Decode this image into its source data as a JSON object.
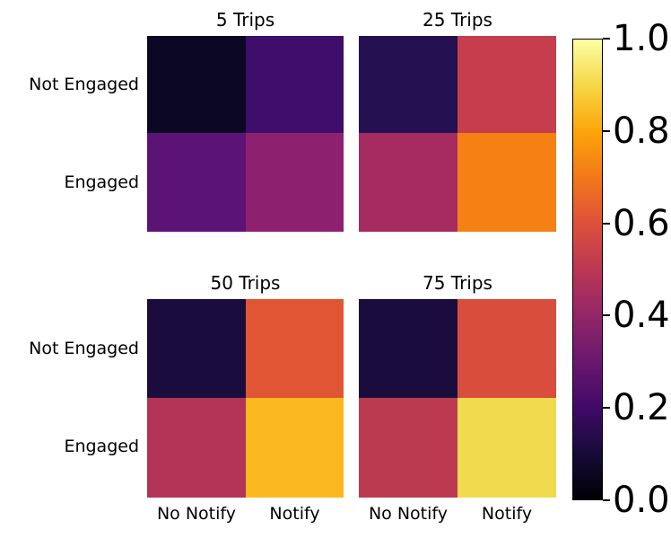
{
  "figure": {
    "background": "#ffffff",
    "colormap": "inferno"
  },
  "chart_data": [
    {
      "type": "heatmap",
      "title": "5 Trips",
      "rows": [
        "Not Engaged",
        "Engaged"
      ],
      "columns": [
        "No Notify",
        "Notify"
      ],
      "values": [
        [
          0.06,
          0.2
        ],
        [
          0.27,
          0.38
        ]
      ],
      "cell_colors": [
        [
          "#0b0724",
          "#3f0d6b"
        ],
        [
          "#5c1376",
          "#8d2170"
        ]
      ],
      "vmin": 0.0,
      "vmax": 1.0
    },
    {
      "type": "heatmap",
      "title": "25 Trips",
      "rows": [
        "Not Engaged",
        "Engaged"
      ],
      "columns": [
        "No Notify",
        "Notify"
      ],
      "values": [
        [
          0.15,
          0.53
        ],
        [
          0.44,
          0.73
        ]
      ],
      "cell_colors": [
        [
          "#251051",
          "#c63e4d"
        ],
        [
          "#a62b60",
          "#f58013"
        ]
      ],
      "vmin": 0.0,
      "vmax": 1.0
    },
    {
      "type": "heatmap",
      "title": "50 Trips",
      "rows": [
        "Not Engaged",
        "Engaged"
      ],
      "columns": [
        "No Notify",
        "Notify"
      ],
      "values": [
        [
          0.11,
          0.62
        ],
        [
          0.48,
          0.85
        ]
      ],
      "cell_colors": [
        [
          "#1a0d3e",
          "#e05635"
        ],
        [
          "#b43457",
          "#fbb81e"
        ]
      ],
      "vmin": 0.0,
      "vmax": 1.0
    },
    {
      "type": "heatmap",
      "title": "75 Trips",
      "rows": [
        "Not Engaged",
        "Engaged"
      ],
      "columns": [
        "No Notify",
        "Notify"
      ],
      "values": [
        [
          0.11,
          0.58
        ],
        [
          0.51,
          0.91
        ]
      ],
      "cell_colors": [
        [
          "#1a0d3e",
          "#d94d3d"
        ],
        [
          "#bc3a50",
          "#f2da4e"
        ]
      ],
      "vmin": 0.0,
      "vmax": 1.0
    }
  ],
  "colorbar": {
    "colormap": "inferno",
    "range": [
      0.0,
      1.0
    ],
    "ticks": [
      "1.0",
      "0.8",
      "0.6",
      "0.4",
      "0.2",
      "0.0"
    ],
    "gradient_stops": [
      "#000004",
      "#160b39",
      "#420a68",
      "#6a176e",
      "#932667",
      "#bc3754",
      "#dd513a",
      "#f37819",
      "#fca50a",
      "#f6d746",
      "#fcffa4"
    ]
  }
}
